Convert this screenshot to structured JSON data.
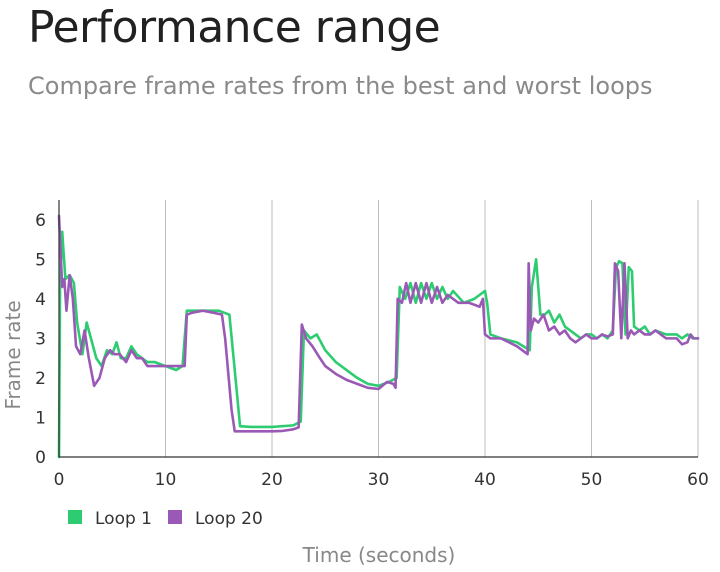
{
  "chart_data": {
    "type": "line",
    "title": "Performance range",
    "subtitle": "Compare frame rates from the best and worst loops",
    "xlabel": "Time (seconds)",
    "ylabel": "Frame rate",
    "xlim": [
      0,
      60
    ],
    "ylim": [
      0,
      6.5
    ],
    "x_ticks": [
      0,
      10,
      20,
      30,
      40,
      50,
      60
    ],
    "y_ticks": [
      0,
      1,
      2,
      3,
      4,
      5,
      6
    ],
    "grid": "vertical",
    "legend_position": "bottom-left",
    "series": [
      {
        "name": "Loop 1",
        "color": "#2ecc71",
        "points": [
          [
            0,
            0
          ],
          [
            0.1,
            4.3
          ],
          [
            0.3,
            5.7
          ],
          [
            0.6,
            4.5
          ],
          [
            1.0,
            4.6
          ],
          [
            1.4,
            4.4
          ],
          [
            1.7,
            3.4
          ],
          [
            2.2,
            2.6
          ],
          [
            2.6,
            3.4
          ],
          [
            3.0,
            3.0
          ],
          [
            3.5,
            2.5
          ],
          [
            4.0,
            2.3
          ],
          [
            4.5,
            2.7
          ],
          [
            5.0,
            2.6
          ],
          [
            5.4,
            2.9
          ],
          [
            5.8,
            2.5
          ],
          [
            6.3,
            2.5
          ],
          [
            6.8,
            2.8
          ],
          [
            7.3,
            2.6
          ],
          [
            7.8,
            2.5
          ],
          [
            8.3,
            2.4
          ],
          [
            9.0,
            2.4
          ],
          [
            10.0,
            2.3
          ],
          [
            11.0,
            2.2
          ],
          [
            11.6,
            2.3
          ],
          [
            12.0,
            3.7
          ],
          [
            13.0,
            3.7
          ],
          [
            14.0,
            3.7
          ],
          [
            15.0,
            3.7
          ],
          [
            15.5,
            3.65
          ],
          [
            16.0,
            3.6
          ],
          [
            16.5,
            2.2
          ],
          [
            17.0,
            0.78
          ],
          [
            18.0,
            0.76
          ],
          [
            20.0,
            0.76
          ],
          [
            22.0,
            0.8
          ],
          [
            22.7,
            0.9
          ],
          [
            23.0,
            3.2
          ],
          [
            23.6,
            3.0
          ],
          [
            24.2,
            3.1
          ],
          [
            25.0,
            2.7
          ],
          [
            26.0,
            2.4
          ],
          [
            27.0,
            2.2
          ],
          [
            28.0,
            2.0
          ],
          [
            29.0,
            1.85
          ],
          [
            30.0,
            1.8
          ],
          [
            31.0,
            1.9
          ],
          [
            31.7,
            2.0
          ],
          [
            32.0,
            4.3
          ],
          [
            32.5,
            4.0
          ],
          [
            33.0,
            4.4
          ],
          [
            33.5,
            3.9
          ],
          [
            34.0,
            4.4
          ],
          [
            34.5,
            4.0
          ],
          [
            35.0,
            4.4
          ],
          [
            35.5,
            4.0
          ],
          [
            36.0,
            4.3
          ],
          [
            36.5,
            4.0
          ],
          [
            37.0,
            4.2
          ],
          [
            38.0,
            3.9
          ],
          [
            39.0,
            4.0
          ],
          [
            39.5,
            4.1
          ],
          [
            40.0,
            4.2
          ],
          [
            40.2,
            3.9
          ],
          [
            40.5,
            3.1
          ],
          [
            41.5,
            3.0
          ],
          [
            43.0,
            2.9
          ],
          [
            44.2,
            2.7
          ],
          [
            44.4,
            4.3
          ],
          [
            44.8,
            5.0
          ],
          [
            45.2,
            3.6
          ],
          [
            45.6,
            3.6
          ],
          [
            46.0,
            3.7
          ],
          [
            46.5,
            3.4
          ],
          [
            47.0,
            3.6
          ],
          [
            47.5,
            3.3
          ],
          [
            48.0,
            3.2
          ],
          [
            48.5,
            3.1
          ],
          [
            49.0,
            3.0
          ],
          [
            49.5,
            3.1
          ],
          [
            50.0,
            3.1
          ],
          [
            50.5,
            3.0
          ],
          [
            51.0,
            3.1
          ],
          [
            51.5,
            3.0
          ],
          [
            52.0,
            3.2
          ],
          [
            52.3,
            4.8
          ],
          [
            52.6,
            4.95
          ],
          [
            52.9,
            4.9
          ],
          [
            53.2,
            3.1
          ],
          [
            53.5,
            4.8
          ],
          [
            53.8,
            4.7
          ],
          [
            54.0,
            3.3
          ],
          [
            54.5,
            3.2
          ],
          [
            55.0,
            3.3
          ],
          [
            55.5,
            3.1
          ],
          [
            56.0,
            3.2
          ],
          [
            57.0,
            3.1
          ],
          [
            58.0,
            3.1
          ],
          [
            58.5,
            3.0
          ],
          [
            59.0,
            3.1
          ],
          [
            59.5,
            3.0
          ],
          [
            60.0,
            3.0
          ]
        ]
      },
      {
        "name": "Loop 20",
        "color": "#9b59b6",
        "points": [
          [
            0,
            6.1
          ],
          [
            0.3,
            4.3
          ],
          [
            0.5,
            4.5
          ],
          [
            0.7,
            3.7
          ],
          [
            1.0,
            4.6
          ],
          [
            1.3,
            4.0
          ],
          [
            1.6,
            2.8
          ],
          [
            2.0,
            2.6
          ],
          [
            2.4,
            3.2
          ],
          [
            2.8,
            2.5
          ],
          [
            3.3,
            1.8
          ],
          [
            3.8,
            2.0
          ],
          [
            4.3,
            2.5
          ],
          [
            4.8,
            2.7
          ],
          [
            5.2,
            2.6
          ],
          [
            5.7,
            2.6
          ],
          [
            6.3,
            2.4
          ],
          [
            6.8,
            2.7
          ],
          [
            7.3,
            2.5
          ],
          [
            7.8,
            2.5
          ],
          [
            8.3,
            2.3
          ],
          [
            9.0,
            2.3
          ],
          [
            10.0,
            2.3
          ],
          [
            11.0,
            2.3
          ],
          [
            11.8,
            2.3
          ],
          [
            12.0,
            3.6
          ],
          [
            12.5,
            3.65
          ],
          [
            13.5,
            3.7
          ],
          [
            14.5,
            3.65
          ],
          [
            15.3,
            3.6
          ],
          [
            15.6,
            3.0
          ],
          [
            16.2,
            1.2
          ],
          [
            16.5,
            0.65
          ],
          [
            18.0,
            0.65
          ],
          [
            20.0,
            0.65
          ],
          [
            21.0,
            0.66
          ],
          [
            22.0,
            0.7
          ],
          [
            22.5,
            0.75
          ],
          [
            22.8,
            3.35
          ],
          [
            23.2,
            3.0
          ],
          [
            23.8,
            2.8
          ],
          [
            24.5,
            2.5
          ],
          [
            25.0,
            2.3
          ],
          [
            26.0,
            2.1
          ],
          [
            27.0,
            1.95
          ],
          [
            28.0,
            1.85
          ],
          [
            29.0,
            1.75
          ],
          [
            30.0,
            1.72
          ],
          [
            30.8,
            1.9
          ],
          [
            31.4,
            1.85
          ],
          [
            31.6,
            1.75
          ],
          [
            31.8,
            4.0
          ],
          [
            32.2,
            3.9
          ],
          [
            32.6,
            4.4
          ],
          [
            33.0,
            3.9
          ],
          [
            33.5,
            4.4
          ],
          [
            34.0,
            3.9
          ],
          [
            34.5,
            4.4
          ],
          [
            35.0,
            3.9
          ],
          [
            35.5,
            4.3
          ],
          [
            36.0,
            3.9
          ],
          [
            36.5,
            4.1
          ],
          [
            37.5,
            3.9
          ],
          [
            38.5,
            3.9
          ],
          [
            39.5,
            3.8
          ],
          [
            39.8,
            4.0
          ],
          [
            40.0,
            3.1
          ],
          [
            40.5,
            3.0
          ],
          [
            41.5,
            3.0
          ],
          [
            43.0,
            2.8
          ],
          [
            44.0,
            2.6
          ],
          [
            44.1,
            4.9
          ],
          [
            44.3,
            3.2
          ],
          [
            44.6,
            3.5
          ],
          [
            45.0,
            3.4
          ],
          [
            45.5,
            3.6
          ],
          [
            46.0,
            3.2
          ],
          [
            46.5,
            3.3
          ],
          [
            47.0,
            3.1
          ],
          [
            47.5,
            3.2
          ],
          [
            48.0,
            3.0
          ],
          [
            48.5,
            2.9
          ],
          [
            49.0,
            3.0
          ],
          [
            49.5,
            3.1
          ],
          [
            50.0,
            3.0
          ],
          [
            50.5,
            3.0
          ],
          [
            51.0,
            3.1
          ],
          [
            51.5,
            3.05
          ],
          [
            52.0,
            3.1
          ],
          [
            52.2,
            4.9
          ],
          [
            52.5,
            4.7
          ],
          [
            52.8,
            3.0
          ],
          [
            53.1,
            4.9
          ],
          [
            53.4,
            3.0
          ],
          [
            53.7,
            3.2
          ],
          [
            54.0,
            3.1
          ],
          [
            54.5,
            3.2
          ],
          [
            55.0,
            3.1
          ],
          [
            55.5,
            3.1
          ],
          [
            56.0,
            3.2
          ],
          [
            57.0,
            3.0
          ],
          [
            58.0,
            3.0
          ],
          [
            58.5,
            2.85
          ],
          [
            59.0,
            2.9
          ],
          [
            59.3,
            3.1
          ],
          [
            59.6,
            3.0
          ],
          [
            60.0,
            3.0
          ]
        ]
      }
    ]
  }
}
